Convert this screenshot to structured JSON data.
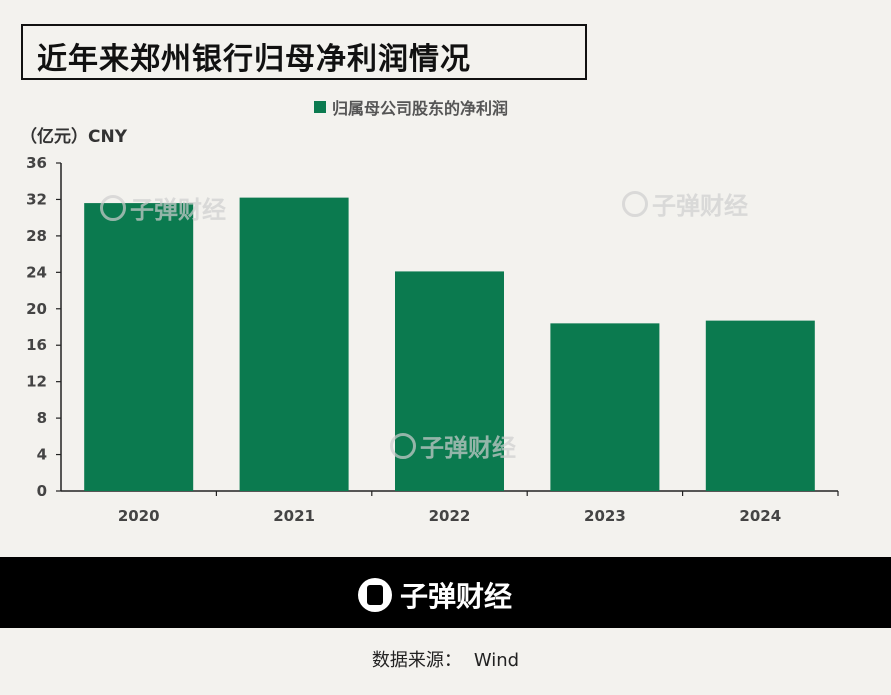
{
  "header": {
    "title": "近年来郑州银行归母净利润情况"
  },
  "legend": {
    "label": "归属母公司股东的净利润",
    "color": "#0b7a4f"
  },
  "unit_label": "（亿元）CNY",
  "watermark": "子弹财经",
  "footer": {
    "brand": "子弹财经",
    "source_label": "数据来源：",
    "source_value": "Wind"
  },
  "chart_data": {
    "type": "bar",
    "categories": [
      "2020",
      "2021",
      "2022",
      "2023",
      "2024"
    ],
    "series": [
      {
        "name": "归属母公司股东的净利润",
        "values": [
          31.6,
          32.2,
          24.1,
          18.4,
          18.7
        ],
        "color": "#0b7a4f"
      }
    ],
    "ylabel": "（亿元）CNY",
    "ylim": [
      0,
      36
    ],
    "yticks": [
      0,
      4,
      8,
      12,
      16,
      20,
      24,
      28,
      32,
      36
    ],
    "grid": false,
    "legend_position": "top-center"
  }
}
